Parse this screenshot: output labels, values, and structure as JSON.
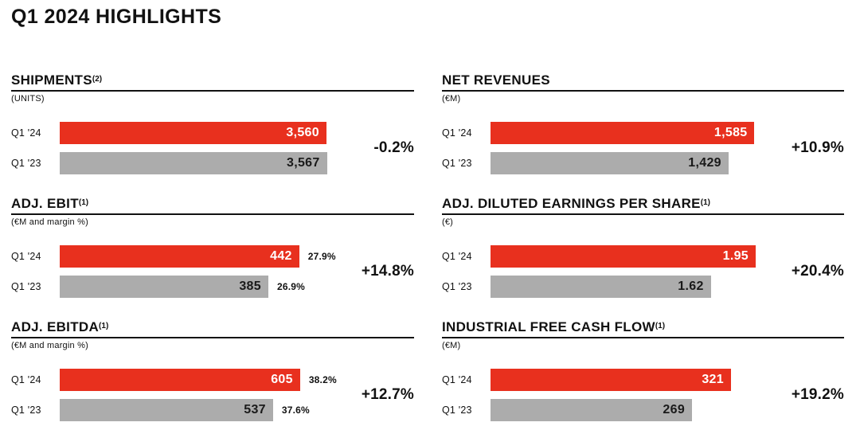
{
  "page_title": "Q1 2024 HIGHLIGHTS",
  "colors": {
    "bar_current": "#e8301e",
    "bar_prior": "#acacac",
    "value_on_current": "#ffffff",
    "value_on_prior": "#1a1a1a",
    "text": "#111111"
  },
  "chart_data": [
    {
      "type": "bar",
      "orientation": "horizontal",
      "title": "SHIPMENTS",
      "footnote": "(2)",
      "unit_label": "(UNITS)",
      "categories": [
        "Q1 '24",
        "Q1 '23"
      ],
      "series": [
        {
          "label": "Q1 '24",
          "value": 3560,
          "display": "3,560",
          "role": "current"
        },
        {
          "label": "Q1 '23",
          "value": 3567,
          "display": "3,567",
          "role": "prior"
        }
      ],
      "delta_label": "-0.2%",
      "xlim": [
        0,
        4730
      ],
      "grid": false,
      "legend": "none"
    },
    {
      "type": "bar",
      "orientation": "horizontal",
      "title": "NET REVENUES",
      "footnote": "",
      "unit_label": "(€M)",
      "categories": [
        "Q1 '24",
        "Q1 '23"
      ],
      "series": [
        {
          "label": "Q1 '24",
          "value": 1585,
          "display": "1,585",
          "role": "current"
        },
        {
          "label": "Q1 '23",
          "value": 1429,
          "display": "1,429",
          "role": "prior"
        }
      ],
      "delta_label": "+10.9%",
      "xlim": [
        0,
        2123
      ],
      "grid": false,
      "legend": "none"
    },
    {
      "type": "bar",
      "orientation": "horizontal",
      "title": "ADJ. EBIT",
      "footnote": "(1)",
      "unit_label": "(€M and margin %)",
      "categories": [
        "Q1 '24",
        "Q1 '23"
      ],
      "series": [
        {
          "label": "Q1 '24",
          "value": 442,
          "display": "442",
          "margin": "27.9%",
          "role": "current"
        },
        {
          "label": "Q1 '23",
          "value": 385,
          "display": "385",
          "margin": "26.9%",
          "role": "prior"
        }
      ],
      "delta_label": "+14.8%",
      "xlim": [
        0,
        654
      ],
      "grid": false,
      "legend": "none"
    },
    {
      "type": "bar",
      "orientation": "horizontal",
      "title": "ADJ. DILUTED EARNINGS PER SHARE",
      "footnote": "(1)",
      "unit_label": "(€)",
      "categories": [
        "Q1 '24",
        "Q1 '23"
      ],
      "series": [
        {
          "label": "Q1 '24",
          "value": 1.95,
          "display": "1.95",
          "role": "current"
        },
        {
          "label": "Q1 '23",
          "value": 1.62,
          "display": "1.62",
          "role": "prior"
        }
      ],
      "delta_label": "+20.4%",
      "xlim": [
        0,
        2.6
      ],
      "grid": false,
      "legend": "none"
    },
    {
      "type": "bar",
      "orientation": "horizontal",
      "title": "ADJ. EBITDA",
      "footnote": "(1)",
      "unit_label": "(€M and margin %)",
      "categories": [
        "Q1 '24",
        "Q1 '23"
      ],
      "series": [
        {
          "label": "Q1 '24",
          "value": 605,
          "display": "605",
          "margin": "38.2%",
          "role": "current"
        },
        {
          "label": "Q1 '23",
          "value": 537,
          "display": "537",
          "margin": "37.6%",
          "role": "prior"
        }
      ],
      "delta_label": "+12.7%",
      "xlim": [
        0,
        892
      ],
      "grid": false,
      "legend": "none"
    },
    {
      "type": "bar",
      "orientation": "horizontal",
      "title": "INDUSTRIAL FREE CASH FLOW",
      "footnote": "(1)",
      "unit_label": "(€M)",
      "categories": [
        "Q1 '24",
        "Q1 '23"
      ],
      "series": [
        {
          "label": "Q1 '24",
          "value": 321,
          "display": "321",
          "role": "current"
        },
        {
          "label": "Q1 '23",
          "value": 269,
          "display": "269",
          "role": "prior"
        }
      ],
      "delta_label": "+19.2%",
      "xlim": [
        0,
        472
      ],
      "grid": false,
      "legend": "none"
    }
  ]
}
